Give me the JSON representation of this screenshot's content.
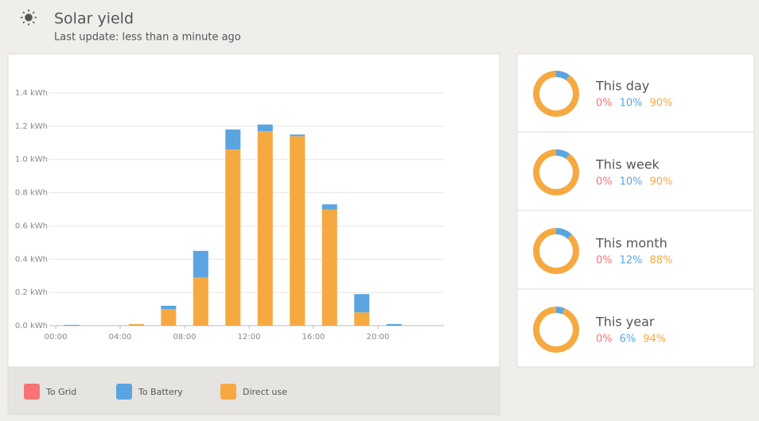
{
  "header": {
    "title": "Solar yield",
    "subtitle": "Last update: less than a minute ago"
  },
  "chart_data": {
    "type": "stacked-bar",
    "x": [
      1,
      3,
      5,
      7,
      9,
      11,
      13,
      15,
      17,
      19,
      21,
      23
    ],
    "series": [
      {
        "name": "Direct use",
        "color": "#f6a941",
        "values": [
          0,
          0,
          0.01,
          0.1,
          0.29,
          1.06,
          1.17,
          1.14,
          0.7,
          0.08,
          0,
          0
        ]
      },
      {
        "name": "To Battery",
        "color": "#5aa5e1",
        "values": [
          0.005,
          0,
          0,
          0.02,
          0.16,
          0.12,
          0.04,
          0.01,
          0.03,
          0.11,
          0.01,
          0
        ]
      },
      {
        "name": "To Grid",
        "color": "#f77374",
        "values": [
          0,
          0,
          0,
          0,
          0,
          0,
          0,
          0,
          0,
          0,
          0,
          0
        ]
      }
    ],
    "legend_order": [
      "To Grid",
      "To Battery",
      "Direct use"
    ],
    "xlim": [
      -0.4,
      24.1
    ],
    "xticks": [
      {
        "value": 0,
        "label": "00:00"
      },
      {
        "value": 4,
        "label": "04:00"
      },
      {
        "value": 8,
        "label": "08:00"
      },
      {
        "value": 12,
        "label": "12:00"
      },
      {
        "value": 16,
        "label": "16:00"
      },
      {
        "value": 20,
        "label": "20:00"
      }
    ],
    "ylim": [
      0,
      1.4
    ],
    "yticks": [
      {
        "value": 0,
        "label": "0.0 kWh"
      },
      {
        "value": 0.2,
        "label": "0.2 kWh"
      },
      {
        "value": 0.4,
        "label": "0.4 kWh"
      },
      {
        "value": 0.6,
        "label": "0.6 kWh"
      },
      {
        "value": 0.8,
        "label": "0.8 kWh"
      },
      {
        "value": 1.0,
        "label": "1.0 kWh"
      },
      {
        "value": 1.2,
        "label": "1.2 kWh"
      },
      {
        "value": 1.4,
        "label": "1.4 kWh"
      }
    ],
    "grid": true
  },
  "summaries": [
    {
      "label": "This day",
      "values": [
        0,
        10,
        90
      ],
      "value_labels": [
        "0%",
        "10%",
        "90%"
      ]
    },
    {
      "label": "This week",
      "values": [
        0,
        10,
        90
      ],
      "value_labels": [
        "0%",
        "10%",
        "90%"
      ]
    },
    {
      "label": "This month",
      "values": [
        0,
        12,
        88
      ],
      "value_labels": [
        "0%",
        "12%",
        "88%"
      ]
    },
    {
      "label": "This year",
      "values": [
        0,
        6,
        94
      ],
      "value_labels": [
        "0%",
        "6%",
        "94%"
      ]
    }
  ]
}
